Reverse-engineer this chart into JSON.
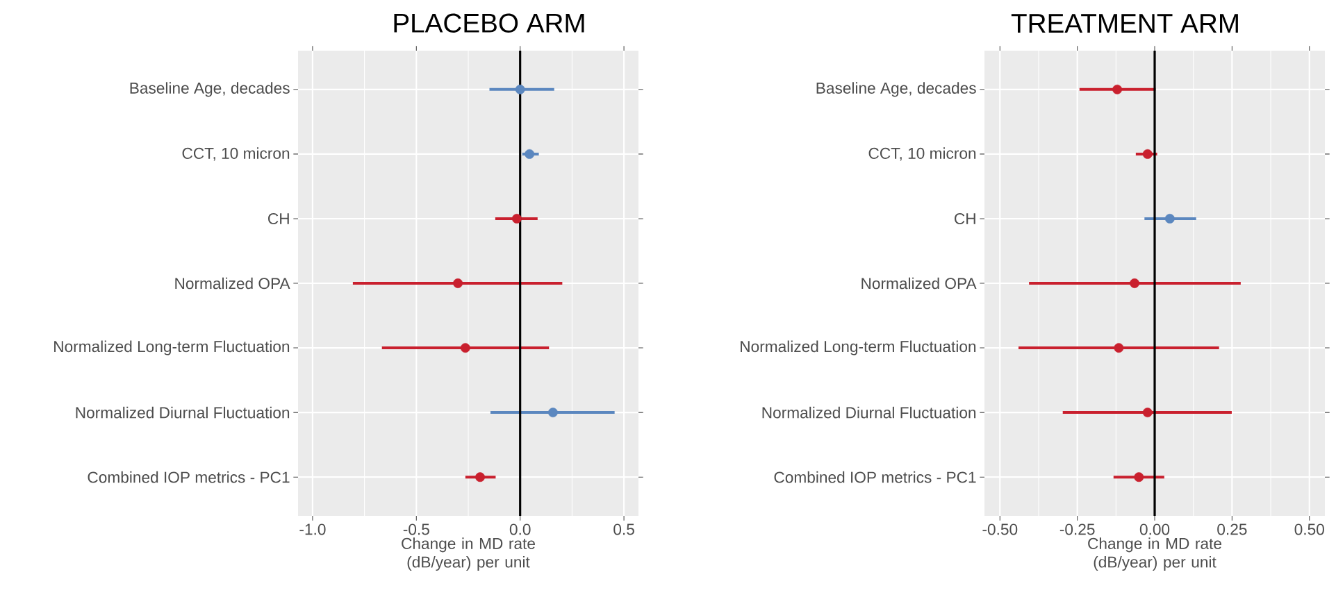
{
  "chart_data": [
    {
      "type": "scatter",
      "orientation": "horizontal",
      "title": "PLACEBO ARM",
      "xlabel": "Change in MD rate (dB/year) per unit",
      "categories": [
        "Baseline Age, decades",
        "CCT, 10 micron",
        "CH",
        "Normalized OPA",
        "Normalized Long-term Fluctuation",
        "Normalized Diurnal Fluctuation",
        "Combined IOP metrics - PC1"
      ],
      "values": [
        0.0,
        0.045,
        -0.016,
        -0.3,
        -0.264,
        0.158,
        -0.193
      ],
      "errors": [
        [
          -0.148,
          0.164
        ],
        [
          0.01,
          0.09
        ],
        [
          -0.12,
          0.084
        ],
        [
          -0.806,
          0.203
        ],
        [
          -0.666,
          0.139
        ],
        [
          -0.143,
          0.455
        ],
        [
          -0.264,
          -0.118
        ]
      ],
      "colors": [
        "#5b87bf",
        "#5b87bf",
        "#c9202e",
        "#c9202e",
        "#c9202e",
        "#5b87bf",
        "#c9202e"
      ],
      "marker": "circle",
      "grid": true,
      "xlim": [
        -1.07,
        0.57
      ],
      "xticks": [
        {
          "value": -1.0,
          "label": "-1.0"
        },
        {
          "value": -0.5,
          "label": "-0.5"
        },
        {
          "value": 0.0,
          "label": "0.0"
        },
        {
          "value": 0.5,
          "label": "0.5"
        }
      ],
      "ref_lines": [
        {
          "axis": "x",
          "value": 0,
          "color": "#000000"
        }
      ]
    },
    {
      "type": "scatter",
      "orientation": "horizontal",
      "title": "TREATMENT ARM",
      "xlabel": "Change in MD rate (dB/year) per unit",
      "categories": [
        "Baseline Age, decades",
        "CCT, 10 micron",
        "CH",
        "Normalized OPA",
        "Normalized Long-term Fluctuation",
        "Normalized Diurnal Fluctuation",
        "Combined IOP metrics - PC1"
      ],
      "values": [
        -0.121,
        -0.023,
        0.049,
        -0.065,
        -0.116,
        -0.023,
        -0.051
      ],
      "errors": [
        [
          -0.243,
          0.003
        ],
        [
          -0.061,
          0.008
        ],
        [
          -0.033,
          0.134
        ],
        [
          -0.406,
          0.278
        ],
        [
          -0.44,
          0.208
        ],
        [
          -0.297,
          0.249
        ],
        [
          -0.133,
          0.031
        ]
      ],
      "colors": [
        "#c9202e",
        "#c9202e",
        "#5b87bf",
        "#c9202e",
        "#c9202e",
        "#c9202e",
        "#c9202e"
      ],
      "marker": "circle",
      "grid": true,
      "xlim": [
        -0.55,
        0.55
      ],
      "xticks": [
        {
          "value": -0.5,
          "label": "-0.50"
        },
        {
          "value": -0.25,
          "label": "-0.25"
        },
        {
          "value": 0.0,
          "label": "0.00"
        },
        {
          "value": 0.25,
          "label": "0.25"
        },
        {
          "value": 0.5,
          "label": "0.50"
        }
      ],
      "ref_lines": [
        {
          "axis": "x",
          "value": 0,
          "color": "#000000"
        }
      ]
    }
  ]
}
